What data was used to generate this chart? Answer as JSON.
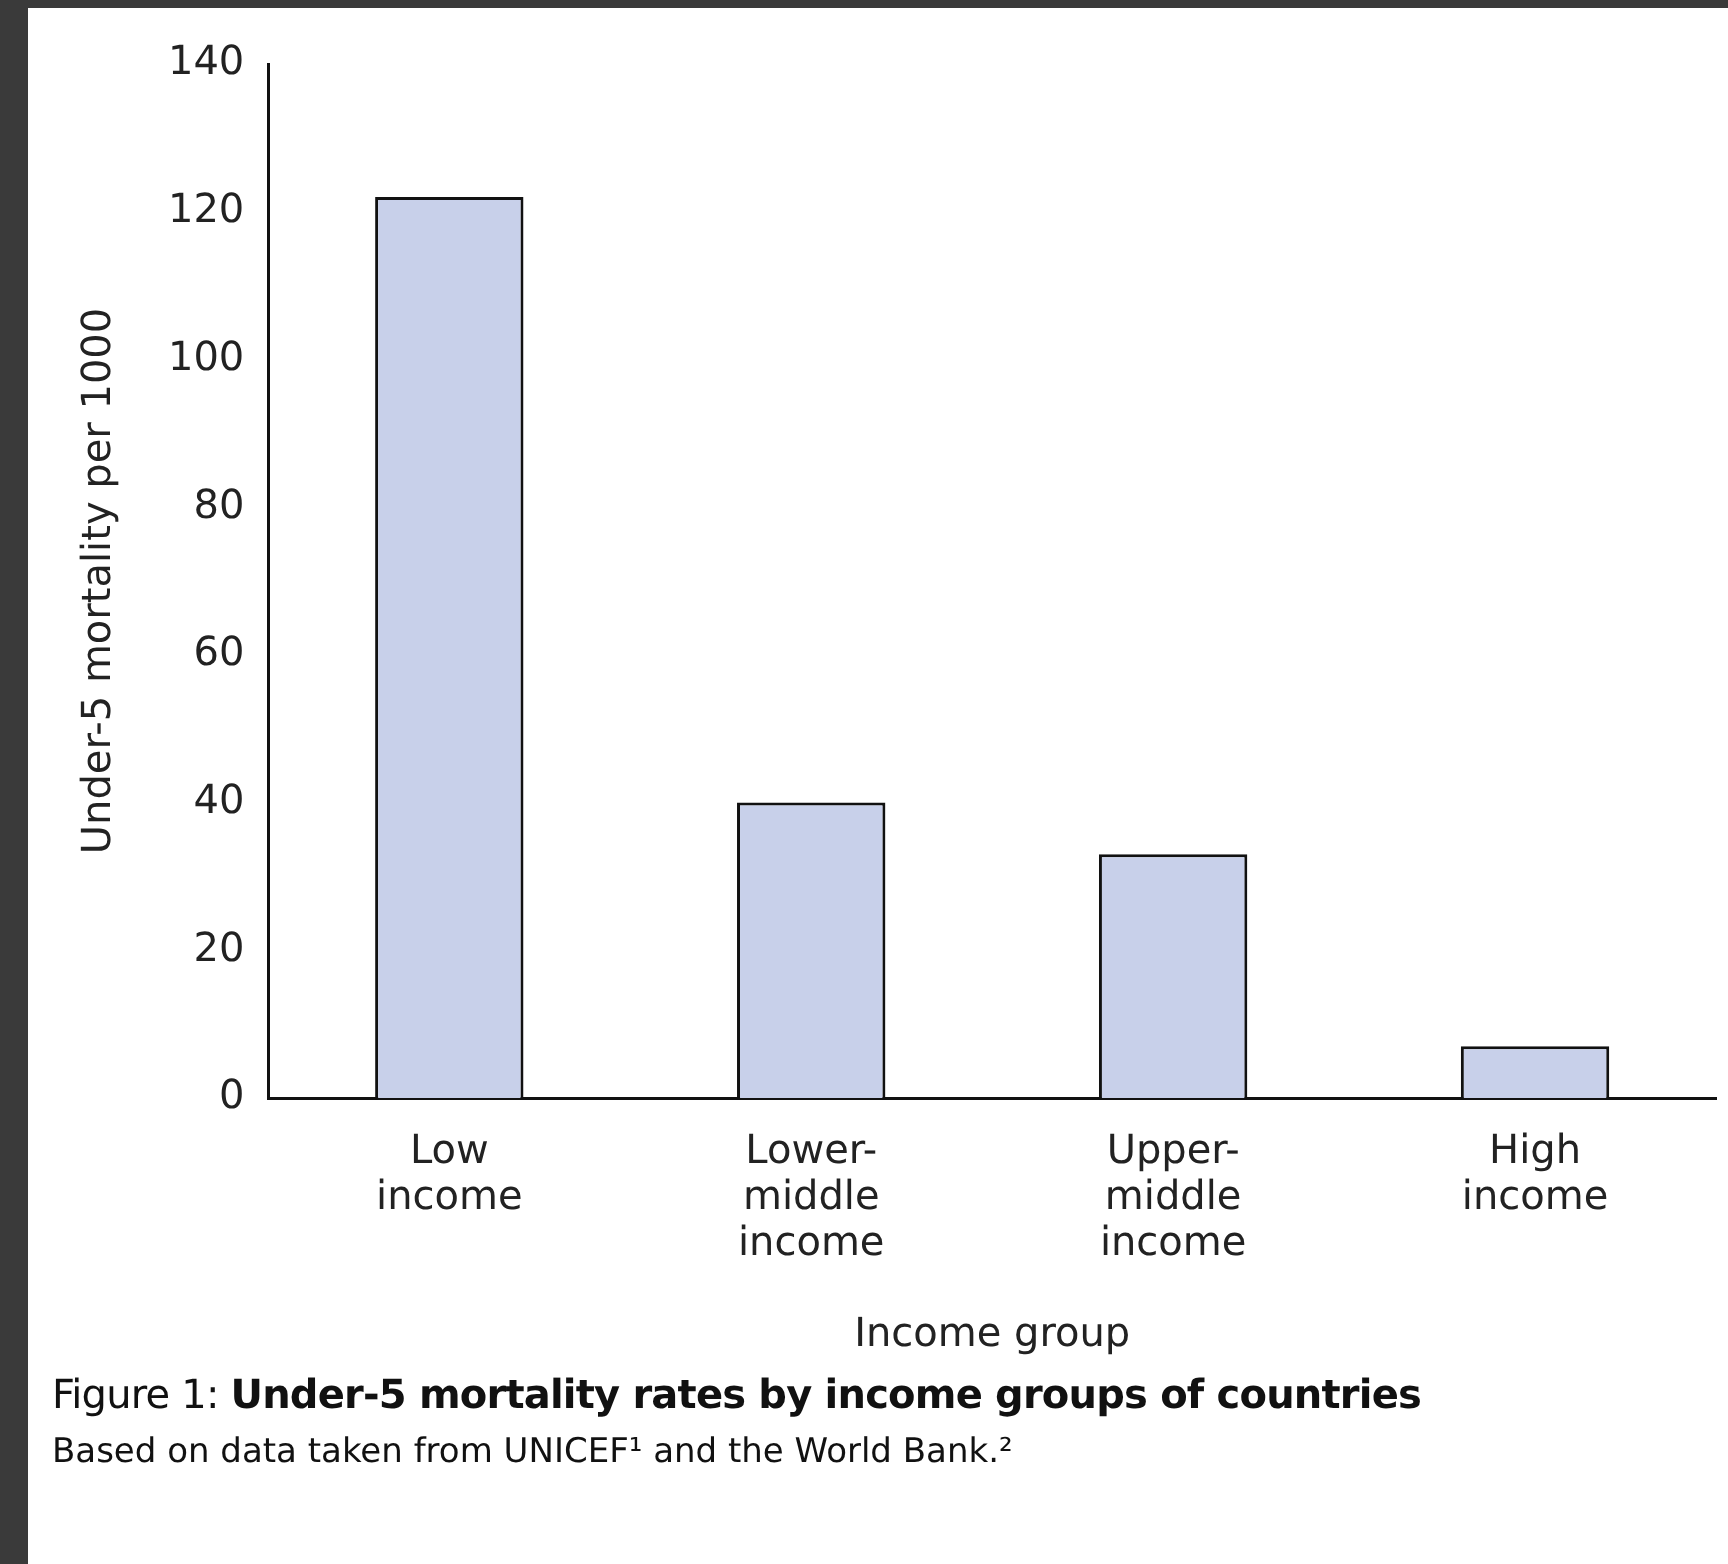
{
  "chart_data": {
    "type": "bar",
    "title": "Figure 1: Under-5 mortality rates by income groups of countries",
    "annotations": [
      "Based on data taken from UNICEF¹ and the World Bank.²"
    ],
    "categories": [
      "Low\nincome",
      "Lower-\nmiddle\nincome",
      "Upper-\nmiddle\nincome",
      "High\nincome"
    ],
    "values": [
      122,
      40,
      33,
      7
    ],
    "color": "#c8d0ea",
    "xlabel": "Income group",
    "ylabel": "Under-5 mortality per 1000",
    "ylim": [
      0,
      140
    ],
    "yticks": [
      0,
      20,
      40,
      60,
      80,
      100,
      120,
      140
    ],
    "grid": false,
    "legend": false
  }
}
